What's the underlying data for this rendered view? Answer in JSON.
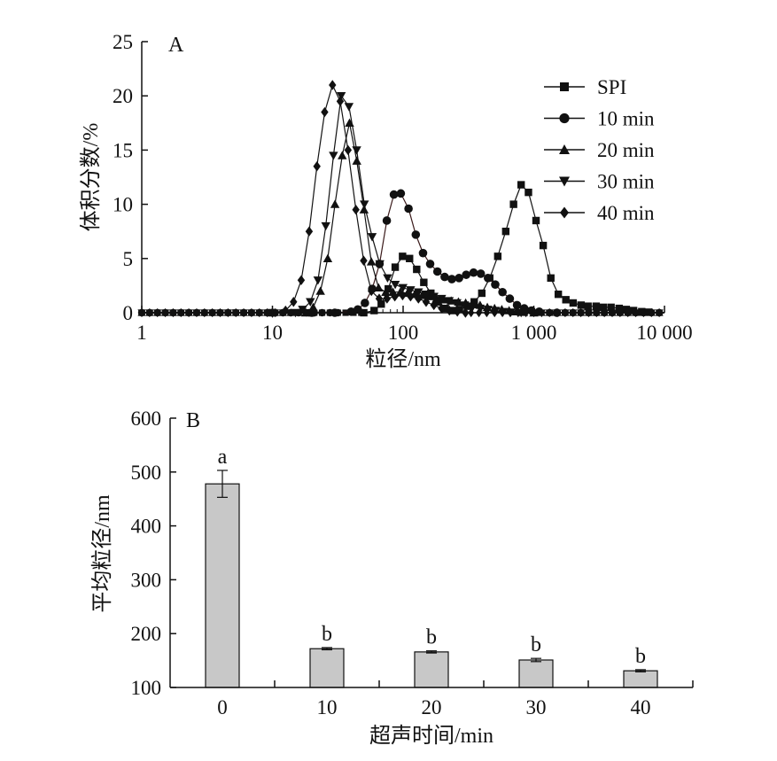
{
  "chart_data": [
    {
      "panel": "A",
      "type": "line",
      "xscale": "log",
      "xlim": [
        1,
        10000
      ],
      "ylim": [
        0,
        25
      ],
      "xlabel": "粒径/nm",
      "ylabel": "体积分数/%",
      "xticks": [
        1,
        10,
        100,
        1000,
        10000
      ],
      "xtick_labels": [
        "1",
        "10",
        "100",
        "1 000",
        "10 000"
      ],
      "yticks": [
        0,
        5,
        10,
        15,
        20,
        25
      ],
      "ytick_labels": [
        "0",
        "5",
        "10",
        "15",
        "20",
        "25"
      ],
      "legend_position": "top-right",
      "series": [
        {
          "name": "SPI",
          "marker": "square",
          "points": [
            [
              1,
              0
            ],
            [
              20,
              0
            ],
            [
              50,
              0
            ],
            [
              60,
              0.2
            ],
            [
              68,
              0.8
            ],
            [
              77,
              2.2
            ],
            [
              87,
              4.2
            ],
            [
              99,
              5.2
            ],
            [
              112,
              5.0
            ],
            [
              127,
              4.0
            ],
            [
              144,
              2.8
            ],
            [
              163,
              1.8
            ],
            [
              185,
              1.0
            ],
            [
              210,
              0.4
            ],
            [
              240,
              0.2
            ],
            [
              270,
              0.3
            ],
            [
              310,
              0.6
            ],
            [
              350,
              1.0
            ],
            [
              400,
              1.8
            ],
            [
              460,
              3.2
            ],
            [
              530,
              5.2
            ],
            [
              610,
              7.5
            ],
            [
              700,
              10.0
            ],
            [
              800,
              11.8
            ],
            [
              910,
              11.1
            ],
            [
              1040,
              8.5
            ],
            [
              1180,
              6.2
            ],
            [
              1350,
              3.2
            ],
            [
              1540,
              1.7
            ],
            [
              1760,
              1.2
            ],
            [
              2000,
              0.9
            ],
            [
              2300,
              0.7
            ],
            [
              2600,
              0.6
            ],
            [
              3000,
              0.6
            ],
            [
              3400,
              0.5
            ],
            [
              3900,
              0.5
            ],
            [
              4500,
              0.4
            ],
            [
              5100,
              0.3
            ],
            [
              5800,
              0.2
            ],
            [
              6700,
              0.1
            ],
            [
              7600,
              0.05
            ],
            [
              10000,
              0
            ]
          ]
        },
        {
          "name": "10 min",
          "marker": "circle",
          "points": [
            [
              1,
              0
            ],
            [
              20,
              0
            ],
            [
              30,
              0
            ],
            [
              40,
              0.1
            ],
            [
              45,
              0.3
            ],
            [
              51,
              0.9
            ],
            [
              58,
              2.2
            ],
            [
              66,
              4.5
            ],
            [
              75,
              8.5
            ],
            [
              85,
              10.9
            ],
            [
              96,
              11.0
            ],
            [
              110,
              9.6
            ],
            [
              125,
              7.2
            ],
            [
              142,
              5.5
            ],
            [
              161,
              4.5
            ],
            [
              183,
              3.8
            ],
            [
              208,
              3.3
            ],
            [
              236,
              3.1
            ],
            [
              268,
              3.2
            ],
            [
              304,
              3.5
            ],
            [
              346,
              3.7
            ],
            [
              393,
              3.6
            ],
            [
              446,
              3.2
            ],
            [
              507,
              2.6
            ],
            [
              576,
              1.9
            ],
            [
              655,
              1.3
            ],
            [
              744,
              0.7
            ],
            [
              845,
              0.4
            ],
            [
              960,
              0.2
            ],
            [
              1100,
              0.1
            ],
            [
              1500,
              0
            ],
            [
              10000,
              0
            ]
          ]
        },
        {
          "name": "20 min",
          "marker": "triangle-up",
          "points": [
            [
              1,
              0
            ],
            [
              10,
              0
            ],
            [
              18,
              0
            ],
            [
              20.5,
              0.5
            ],
            [
              23.3,
              2.0
            ],
            [
              26.5,
              5.0
            ],
            [
              30.1,
              10.0
            ],
            [
              34.2,
              14.5
            ],
            [
              38.9,
              17.5
            ],
            [
              44.2,
              14.0
            ],
            [
              50.2,
              9.5
            ],
            [
              57.1,
              4.7
            ],
            [
              64.9,
              2.3
            ],
            [
              73.7,
              1.9
            ],
            [
              83.7,
              1.9
            ],
            [
              95.1,
              1.9
            ],
            [
              108,
              1.8
            ],
            [
              123,
              1.7
            ],
            [
              140,
              1.6
            ],
            [
              159,
              1.5
            ],
            [
              180,
              1.3
            ],
            [
              205,
              1.2
            ],
            [
              233,
              1.1
            ],
            [
              265,
              1.0
            ],
            [
              301,
              0.9
            ],
            [
              342,
              0.8
            ],
            [
              388,
              0.7
            ],
            [
              441,
              0.5
            ],
            [
              501,
              0.4
            ],
            [
              569,
              0.3
            ],
            [
              647,
              0.2
            ],
            [
              735,
              0.1
            ],
            [
              835,
              0.05
            ],
            [
              1000,
              0
            ],
            [
              10000,
              0
            ]
          ]
        },
        {
          "name": "30 min",
          "marker": "triangle-down",
          "points": [
            [
              1,
              0
            ],
            [
              10,
              0
            ],
            [
              15,
              0
            ],
            [
              17.0,
              0.3
            ],
            [
              19.5,
              1.0
            ],
            [
              22.3,
              3.0
            ],
            [
              25.6,
              8.0
            ],
            [
              29.3,
              14.5
            ],
            [
              33.6,
              20.0
            ],
            [
              38.5,
              19.0
            ],
            [
              44.1,
              15.0
            ],
            [
              50.5,
              10.0
            ],
            [
              57.9,
              7.0
            ],
            [
              66.3,
              4.5
            ],
            [
              76.0,
              3.2
            ],
            [
              87.0,
              2.6
            ],
            [
              99.7,
              2.3
            ],
            [
              114,
              2.1
            ],
            [
              131,
              1.9
            ],
            [
              150,
              1.7
            ],
            [
              172,
              1.5
            ],
            [
              197,
              1.3
            ],
            [
              225,
              1.1
            ],
            [
              258,
              0.9
            ],
            [
              296,
              0.7
            ],
            [
              339,
              0.5
            ],
            [
              388,
              0.4
            ],
            [
              445,
              0.3
            ],
            [
              509,
              0.2
            ],
            [
              583,
              0.1
            ],
            [
              668,
              0.05
            ],
            [
              800,
              0
            ],
            [
              10000,
              0
            ]
          ]
        },
        {
          "name": "40 min",
          "marker": "diamond",
          "points": [
            [
              1,
              0
            ],
            [
              10,
              0
            ],
            [
              12.6,
              0.2
            ],
            [
              14.5,
              1.0
            ],
            [
              16.6,
              3.0
            ],
            [
              19.1,
              7.5
            ],
            [
              21.9,
              13.5
            ],
            [
              25.1,
              18.5
            ],
            [
              28.8,
              21.0
            ],
            [
              33.0,
              19.5
            ],
            [
              37.9,
              15.0
            ],
            [
              43.5,
              9.5
            ],
            [
              49.9,
              4.8
            ],
            [
              57.2,
              2.0
            ],
            [
              65.6,
              1.3
            ],
            [
              75.3,
              1.3
            ],
            [
              86.4,
              1.5
            ],
            [
              99.1,
              1.6
            ],
            [
              114,
              1.5
            ],
            [
              131,
              1.3
            ],
            [
              150,
              1.0
            ],
            [
              172,
              0.7
            ],
            [
              197,
              0.4
            ],
            [
              226,
              0.2
            ],
            [
              260,
              0.1
            ],
            [
              300,
              0
            ],
            [
              10000,
              0
            ]
          ]
        }
      ]
    },
    {
      "panel": "B",
      "type": "bar",
      "categories": [
        "0",
        "10",
        "20",
        "30",
        "40"
      ],
      "values": [
        478,
        172,
        166,
        151,
        131
      ],
      "errors": [
        25,
        2,
        2,
        3,
        2
      ],
      "significance": [
        "a",
        "b",
        "b",
        "b",
        "b"
      ],
      "xlabel": "超声时间/min",
      "ylabel": "平均粒径/nm",
      "ylim": [
        100,
        600
      ],
      "yticks": [
        100,
        200,
        300,
        400,
        500,
        600
      ],
      "ytick_labels": [
        "100",
        "200",
        "300",
        "400",
        "500",
        "600"
      ],
      "bar_color": "#c8c8c8"
    }
  ]
}
